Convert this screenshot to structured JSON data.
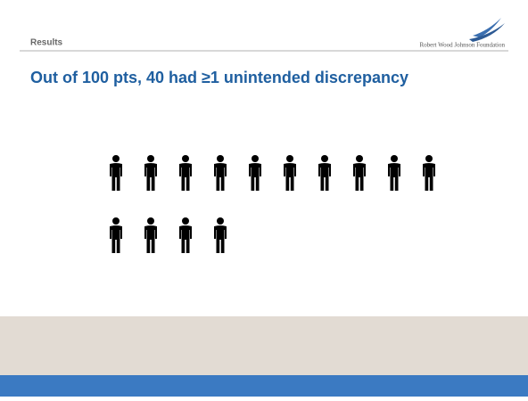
{
  "header": {
    "section": "Results",
    "logo": "Robert Wood Johnson Foundation"
  },
  "title": "Out of 100 pts, 40 had ≥1 unintended discrepancy"
}
